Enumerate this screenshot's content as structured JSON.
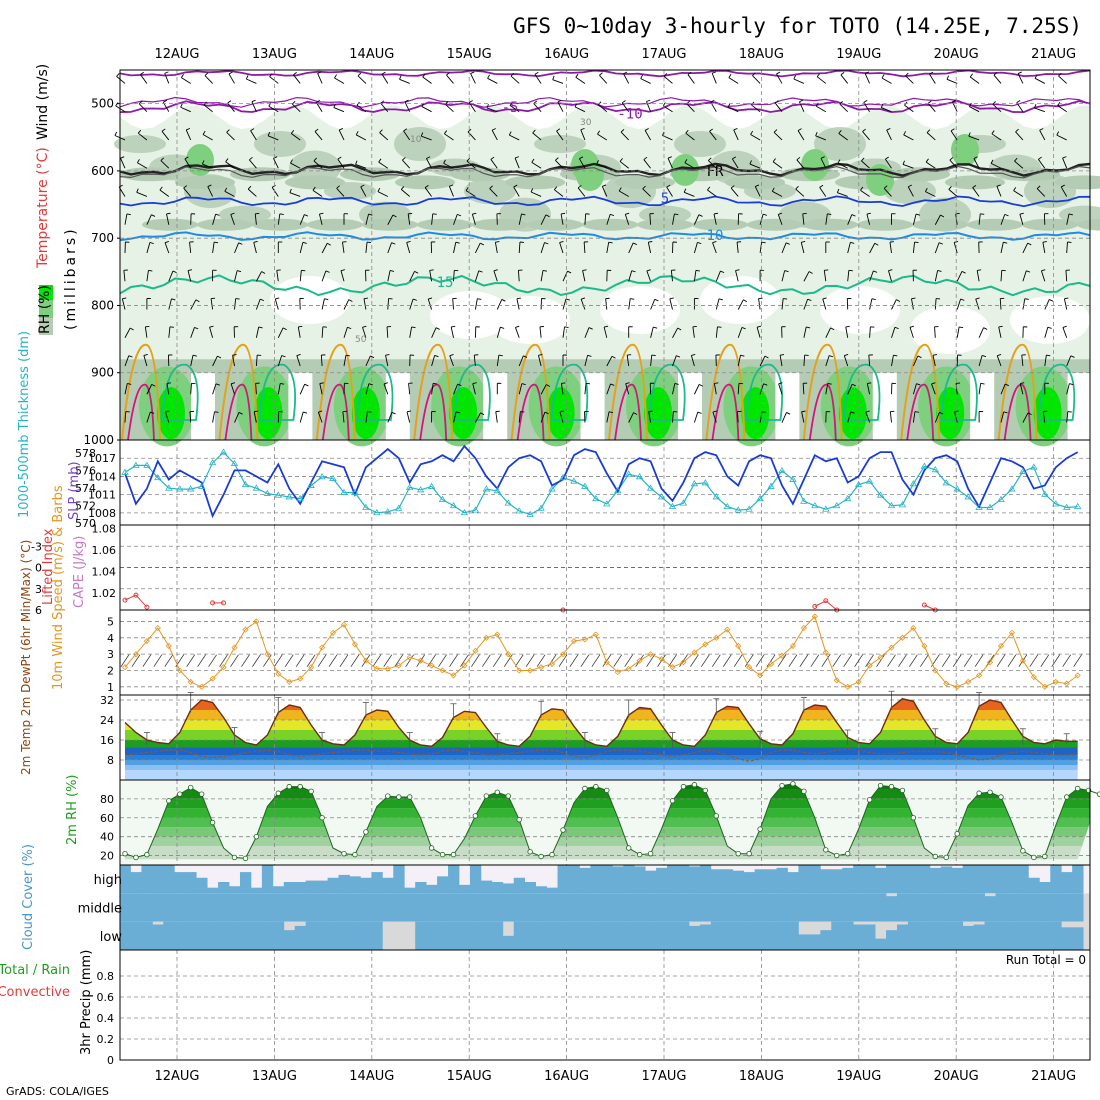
{
  "header": {
    "title": "GFS 0~10day 3-hourly for TOTO (14.25E, 7.25S)",
    "credit": "GrADS: COLA/IGES"
  },
  "colors": {
    "rh_light": "#e6f2e6",
    "rh_mid": "#b4ccb4",
    "rh_dark": "#7ed07e",
    "rh_bright": "#00e600",
    "temp_purple": "#8c1aa8",
    "temp_blue": "#1a3cd6",
    "temp_sky": "#1e8ce6",
    "temp_teal": "#1aba8c",
    "temp_orange": "#e6a01a",
    "temp_magenta": "#d6147c",
    "slp": "#1a3cd6",
    "thickness": "#28b4c8",
    "lifted": "#e03c3c",
    "wind10m": "#e6961e",
    "cloud": "#6aaed6",
    "cloud_clear": "#f5f0f8",
    "gray_fill": "#d9d9d9"
  },
  "chart_data": [
    {
      "type": "heatmap",
      "panel": "upper-air cross section",
      "ylabel_rh": "RH (%)",
      "ylabel_temp": "Temperature (°C)",
      "ylabel_wind": "Wind (m/s)",
      "ylabel_pressure": "(millibars)",
      "y_ticks": [
        500,
        600,
        700,
        800,
        900,
        1000
      ],
      "ylim": [
        450,
        1000
      ],
      "isotherm_labels": [
        {
          "value": "-5",
          "level": 505
        },
        {
          "value": "-10",
          "level": 515
        },
        {
          "value": "FR",
          "level": 600
        },
        {
          "value": "5",
          "level": 640
        },
        {
          "value": "10",
          "level": 695
        },
        {
          "value": "15",
          "level": 765
        }
      ],
      "rh_labels": [
        "30",
        "10",
        "50"
      ]
    },
    {
      "type": "line",
      "panel": "SLP and 1000-500mb thickness",
      "ylabel_left": "1000-500mb Thickness (dm)",
      "ylabel_right": "SLP (mb)",
      "left_ticks": [
        570,
        572,
        574,
        576,
        578
      ],
      "right_ticks": [
        1008,
        1011,
        1014,
        1017
      ],
      "slp_values": [
        1014.5,
        1009.5,
        1012.0,
        1016.5,
        1013.5,
        1015.0,
        1014.0,
        1013.0,
        1007.5,
        1011.0,
        1015.0,
        1015.0,
        1014.0,
        1013.0,
        1016.0,
        1012.0,
        1009.5,
        1013.0,
        1016.5,
        1016.0,
        1015.5,
        1011.0,
        1015.5,
        1017.0,
        1018.5,
        1017.0,
        1013.0,
        1016.0,
        1016.5,
        1017.5,
        1016.5,
        1019.0,
        1017.0,
        1014.0,
        1012.0,
        1015.5,
        1017.0,
        1017.5,
        1016.5,
        1012.5,
        1013.5,
        1017.5,
        1018.5,
        1018.0,
        1014.5,
        1011.5,
        1016.0,
        1017.0,
        1016.5,
        1012.0,
        1010.0,
        1013.0,
        1017.0,
        1018.0,
        1017.5,
        1014.0,
        1012.5,
        1016.5,
        1017.5,
        1017.0,
        1012.5,
        1009.5,
        1013.5,
        1017.5,
        1016.5,
        1017.0,
        1013.0,
        1014.0,
        1017.0,
        1018.0,
        1018.0,
        1013.5,
        1011.0,
        1015.0,
        1017.0,
        1017.5,
        1016.5,
        1012.0,
        1009.0,
        1013.0,
        1017.0,
        1016.5,
        1015.5,
        1012.0,
        1012.5,
        1015.5,
        1017.0,
        1018.0
      ],
      "thickness_values": [
        575.8,
        576.6,
        576.6,
        575.2,
        574.0,
        573.9,
        573.9,
        574.2,
        576.9,
        578.1,
        576.8,
        574.4,
        574.0,
        573.4,
        573.2,
        573.0,
        572.8,
        574.3,
        575.3,
        575.1,
        573.5,
        573.5,
        571.8,
        571.2,
        571.3,
        571.7,
        574.1,
        573.8,
        574.2,
        572.7,
        572.0,
        571.2,
        571.5,
        573.9,
        573.7,
        572.3,
        571.4,
        571.0,
        571.7,
        573.9,
        575.2,
        574.8,
        574.2,
        572.8,
        572.2,
        573.7,
        575.6,
        575.3,
        574.0,
        573.0,
        571.9,
        572.3,
        574.5,
        574.6,
        573.0,
        571.9,
        571.5,
        571.6,
        572.8,
        574.2,
        576.0,
        575.0,
        572.5,
        572.0,
        571.6,
        572.0,
        572.8,
        574.4,
        574.8,
        573.2,
        572.0,
        572.1,
        574.5,
        576.5,
        576.1,
        574.6,
        573.9,
        573.0,
        571.8,
        571.8,
        572.7,
        573.9,
        575.9,
        576.4,
        573.3,
        572.2,
        571.8,
        571.9
      ]
    },
    {
      "type": "line",
      "panel": "Lifted Index and CAPE",
      "ylabel_left": "Lifted Index",
      "ylabel_right": "CAPE (J/kg)",
      "left_ticks": [
        "-3",
        "0",
        "3",
        "6"
      ],
      "right_ticks": [
        "1.02",
        "1.04",
        "1.06",
        "1.08"
      ],
      "lifted_index_points": [
        {
          "step": 0,
          "value": 4.6
        },
        {
          "step": 1,
          "value": 3.9
        },
        {
          "step": 2,
          "value": 5.6
        },
        {
          "step": 8,
          "value": 5.0
        },
        {
          "step": 9,
          "value": 5.0
        },
        {
          "step": 40,
          "value": 6.0
        },
        {
          "step": 63,
          "value": 5.5
        },
        {
          "step": 64,
          "value": 4.7
        },
        {
          "step": 65,
          "value": 6.0
        },
        {
          "step": 73,
          "value": 5.3
        },
        {
          "step": 74,
          "value": 6.0
        }
      ]
    },
    {
      "type": "line",
      "panel": "10m wind speed and barbs",
      "ylabel": "10m Wind Speed (m/s) & Barbs",
      "y_ticks": [
        1,
        2,
        3,
        4,
        5
      ],
      "values": [
        2.2,
        3.0,
        3.8,
        4.6,
        3.5,
        2.0,
        1.3,
        1.0,
        1.5,
        2.2,
        3.4,
        4.5,
        5.0,
        3.0,
        1.8,
        1.3,
        1.5,
        2.2,
        3.4,
        4.3,
        4.8,
        3.6,
        2.6,
        2.1,
        2.1,
        2.3,
        2.8,
        2.6,
        2.3,
        2.0,
        1.7,
        2.3,
        3.2,
        4.0,
        4.2,
        3.0,
        2.0,
        2.0,
        2.2,
        2.4,
        3.0,
        3.8,
        3.9,
        4.2,
        2.5,
        1.9,
        2.1,
        2.6,
        3.0,
        2.7,
        2.2,
        2.5,
        3.1,
        3.6,
        4.0,
        4.5,
        3.5,
        2.2,
        1.7,
        2.4,
        2.9,
        3.5,
        4.6,
        5.3,
        3.1,
        1.4,
        1.0,
        1.3,
        2.3,
        2.8,
        3.4,
        4.0,
        4.6,
        3.5,
        2.0,
        1.2,
        1.0,
        1.3,
        1.7,
        2.5,
        3.5,
        4.3,
        2.6,
        1.6,
        1.0,
        1.3,
        1.2,
        1.7
      ]
    },
    {
      "type": "area",
      "panel": "2m temperature and dewpoint",
      "ylabel": "2m Temp 2m DewPt (6hr Min/Max) (°C)",
      "y_ticks": [
        8,
        16,
        24,
        32
      ],
      "temp_values": [
        23.0,
        19.0,
        16.0,
        15.0,
        14.5,
        19.0,
        28.0,
        32.0,
        31.0,
        25.0,
        18.0,
        15.0,
        14.0,
        18.0,
        27.0,
        30.0,
        29.0,
        22.0,
        16.0,
        14.5,
        14.0,
        18.0,
        26.0,
        28.0,
        27.5,
        21.0,
        16.0,
        14.0,
        13.5,
        17.0,
        25.0,
        27.5,
        27.0,
        21.0,
        15.5,
        14.0,
        13.5,
        17.5,
        26.0,
        28.5,
        28.0,
        21.5,
        16.0,
        14.0,
        13.5,
        17.5,
        26.0,
        29.0,
        28.5,
        22.0,
        16.0,
        14.0,
        13.5,
        18.0,
        27.0,
        29.5,
        29.0,
        22.5,
        16.5,
        14.5,
        14.0,
        18.5,
        28.0,
        30.0,
        29.5,
        23.0,
        17.0,
        15.0,
        14.5,
        19.0,
        29.0,
        32.5,
        31.5,
        24.0,
        17.5,
        15.0,
        14.5,
        19.0,
        29.5,
        32.0,
        31.0,
        24.0,
        17.5,
        15.0,
        14.5,
        16.0,
        15.5,
        15.5
      ],
      "dewpoint_values": [
        10.0,
        10.5,
        11.0,
        11.5,
        12.0,
        12.0,
        11.0,
        9.5,
        9.0,
        9.5,
        10.0,
        11.0,
        11.5,
        12.0,
        11.5,
        10.0,
        9.5,
        10.0,
        10.5,
        11.0,
        11.5,
        12.0,
        12.0,
        11.5,
        11.5,
        11.0,
        10.5,
        10.0,
        10.5,
        11.5,
        12.0,
        11.5,
        11.0,
        10.0,
        10.0,
        10.5,
        11.0,
        11.5,
        12.0,
        12.0,
        11.0,
        9.5,
        9.0,
        10.0,
        11.5,
        12.0,
        12.0,
        11.5,
        11.0,
        10.0,
        9.5,
        10.0,
        11.0,
        12.0,
        11.5,
        10.0,
        8.5,
        7.5,
        8.5,
        11.0,
        12.0,
        12.0,
        11.0,
        10.5,
        11.0,
        12.0,
        12.5,
        12.0,
        11.0,
        10.5,
        10.5,
        11.0,
        11.5,
        11.5,
        11.5,
        11.0,
        10.0,
        9.0,
        8.0,
        8.5,
        10.0,
        11.0,
        11.5,
        11.0,
        10.5,
        10.0,
        10.0,
        10.5
      ]
    },
    {
      "type": "area",
      "panel": "2m relative humidity",
      "ylabel": "2m RH (%)",
      "y_ticks": [
        20,
        40,
        60,
        80
      ],
      "values": [
        22,
        18,
        21,
        48,
        78,
        85,
        92,
        85,
        55,
        28,
        18,
        17,
        40,
        72,
        86,
        93,
        93,
        88,
        60,
        28,
        22,
        21,
        45,
        72,
        83,
        82,
        82,
        60,
        28,
        21,
        21,
        38,
        62,
        83,
        87,
        83,
        58,
        24,
        19,
        21,
        47,
        76,
        91,
        93,
        89,
        60,
        28,
        21,
        22,
        48,
        78,
        93,
        95,
        89,
        62,
        30,
        22,
        22,
        48,
        80,
        94,
        96,
        88,
        60,
        26,
        20,
        22,
        48,
        79,
        94,
        93,
        89,
        60,
        28,
        19,
        18,
        43,
        73,
        86,
        87,
        82,
        55,
        25,
        18,
        19,
        52,
        82,
        91,
        89,
        85
      ]
    },
    {
      "type": "bar",
      "panel": "cloud cover",
      "ylabel": "Cloud Cover (%)",
      "layers": [
        "high",
        "middle",
        "low"
      ],
      "high_values": [
        100,
        75,
        100,
        100,
        100,
        75,
        75,
        55,
        20,
        40,
        25,
        75,
        20,
        100,
        25,
        40,
        40,
        45,
        45,
        55,
        65,
        60,
        55,
        75,
        55,
        100,
        20,
        40,
        30,
        60,
        100,
        30,
        100,
        45,
        40,
        35,
        55,
        40,
        25,
        20,
        100,
        100,
        90,
        100,
        100,
        95,
        100,
        95,
        80,
        90,
        100,
        100,
        95,
        100,
        85,
        85,
        80,
        75,
        85,
        85,
        90,
        75,
        100,
        100,
        85,
        85,
        90,
        100,
        100,
        90,
        100,
        100,
        100,
        100,
        90,
        95,
        90,
        100,
        100,
        100,
        100,
        100,
        100,
        55,
        40,
        100,
        75,
        100
      ],
      "middle_values": [
        100,
        100,
        100,
        100,
        100,
        100,
        100,
        100,
        100,
        100,
        100,
        100,
        100,
        100,
        100,
        100,
        100,
        100,
        100,
        100,
        100,
        100,
        100,
        100,
        100,
        100,
        100,
        100,
        100,
        100,
        100,
        100,
        100,
        100,
        100,
        100,
        100,
        100,
        100,
        100,
        100,
        100,
        100,
        100,
        100,
        100,
        100,
        100,
        100,
        100,
        100,
        100,
        100,
        100,
        100,
        100,
        100,
        100,
        100,
        100,
        100,
        100,
        100,
        100,
        100,
        100,
        100,
        100,
        100,
        100,
        90,
        100,
        100,
        100,
        100,
        100,
        100,
        100,
        100,
        90,
        100,
        100,
        100,
        100,
        100,
        100,
        100,
        100
      ],
      "low_values": [
        100,
        100,
        100,
        90,
        100,
        100,
        100,
        100,
        100,
        100,
        100,
        100,
        100,
        100,
        100,
        70,
        85,
        100,
        100,
        100,
        100,
        100,
        100,
        100,
        0,
        0,
        0,
        100,
        100,
        100,
        100,
        100,
        100,
        100,
        100,
        50,
        100,
        100,
        100,
        100,
        100,
        100,
        100,
        100,
        100,
        100,
        100,
        100,
        100,
        100,
        100,
        100,
        85,
        90,
        100,
        100,
        100,
        100,
        100,
        100,
        100,
        100,
        55,
        55,
        70,
        100,
        100,
        90,
        90,
        40,
        70,
        90,
        100,
        100,
        100,
        100,
        100,
        85,
        90,
        100,
        100,
        100,
        100,
        100,
        100,
        100,
        80,
        80
      ]
    },
    {
      "type": "bar",
      "panel": "3hr precipitation",
      "ylabel": "3hr Precip (mm)",
      "legend": [
        "Total / Rain",
        "Convective"
      ],
      "y_ticks": [
        "0",
        "0.2",
        "0.4",
        "0.6",
        "0.8"
      ],
      "ylim": [
        0,
        1
      ],
      "run_total": "Run Total = 0",
      "values": []
    }
  ],
  "dates": [
    "12AUG",
    "13AUG",
    "14AUG",
    "15AUG",
    "16AUG",
    "17AUG",
    "18AUG",
    "19AUG",
    "20AUG",
    "21AUG"
  ]
}
